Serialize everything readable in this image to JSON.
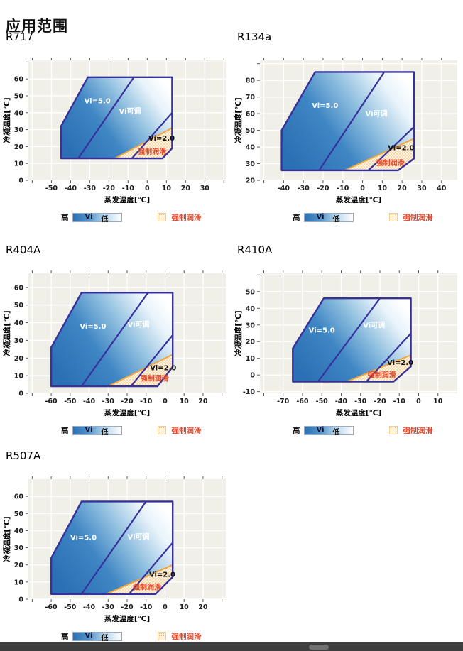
{
  "page_title": "应用范围",
  "axis": {
    "x_label": "蒸发温度[℃]",
    "y_label": "冷凝温度[℃]"
  },
  "legend": {
    "high": "高",
    "vi": "Vi",
    "low": "低",
    "forced": "强制润滑"
  },
  "colors": {
    "border_navy": "#37319b",
    "plot_bg": "#f0efe8",
    "grid": "#ffffff",
    "tick": "#555555",
    "text": "#1a1a1a",
    "orange_line": "#f2a43d",
    "forced_text": "#e0472b",
    "dot_bg": "#fdf5e2",
    "dot_color": "#f0b060",
    "fill_stops": [
      "#2b70b4",
      "#3f86c4",
      "#8ebedf",
      "#e8f3fa",
      "#ffffff"
    ]
  },
  "chart_data": [
    {
      "type": "area",
      "name": "R717",
      "x_ticks": [
        -50,
        -40,
        -30,
        -20,
        -10,
        0,
        10,
        20,
        30
      ],
      "y_ticks": [
        0,
        10,
        20,
        30,
        40,
        50,
        60
      ],
      "x_domain": [
        -62,
        41
      ],
      "y_domain": [
        0,
        71
      ],
      "grid_extra_x": [
        -60,
        40
      ],
      "grid_extra_y": [
        70
      ],
      "envelope": [
        [
          -45,
          13
        ],
        [
          -45,
          32
        ],
        [
          -31,
          61
        ],
        [
          13,
          61
        ],
        [
          13,
          19
        ],
        [
          8,
          13
        ]
      ],
      "vi5_boundary": [
        [
          -36,
          13
        ],
        [
          -7,
          61
        ]
      ],
      "vi2_boundary": [
        [
          -8,
          13
        ],
        [
          13,
          40
        ]
      ],
      "forced_lube_line": [
        [
          -17,
          13
        ],
        [
          13,
          31
        ]
      ],
      "forced_region": [
        [
          -17,
          13
        ],
        [
          13,
          31
        ],
        [
          13,
          19
        ],
        [
          8,
          13
        ]
      ],
      "labels": [
        {
          "text": "Vi=5.0",
          "x": -26,
          "y": 47,
          "style": "white"
        },
        {
          "text": "Vi可调",
          "x": -9,
          "y": 41,
          "style": "white"
        },
        {
          "text": "Vi=2.0",
          "x": 7.5,
          "y": 25,
          "style": "black"
        },
        {
          "text": "强制润滑",
          "x": 2.5,
          "y": 17,
          "style": "red"
        }
      ]
    },
    {
      "type": "area",
      "name": "R134a",
      "x_ticks": [
        -40,
        -30,
        -20,
        -10,
        0,
        10,
        20,
        30,
        40
      ],
      "y_ticks": [
        20,
        30,
        40,
        50,
        60,
        70,
        80
      ],
      "x_domain": [
        -52,
        48
      ],
      "y_domain": [
        20,
        92
      ],
      "grid_extra_x": [
        -50
      ],
      "grid_extra_y": [
        90
      ],
      "envelope": [
        [
          -41,
          26
        ],
        [
          -41,
          50
        ],
        [
          -24,
          85
        ],
        [
          26,
          85
        ],
        [
          26,
          33
        ],
        [
          18,
          26
        ]
      ],
      "vi5_boundary": [
        [
          -22,
          26
        ],
        [
          11,
          85
        ]
      ],
      "vi2_boundary": [
        [
          3,
          26
        ],
        [
          26,
          52
        ]
      ],
      "forced_lube_line": [
        [
          -9,
          26
        ],
        [
          26,
          45
        ]
      ],
      "forced_region": [
        [
          -9,
          26
        ],
        [
          26,
          45
        ],
        [
          26,
          33
        ],
        [
          18,
          26
        ]
      ],
      "labels": [
        {
          "text": "Vi=5.0",
          "x": -19,
          "y": 65,
          "style": "white"
        },
        {
          "text": "Vi可调",
          "x": 7,
          "y": 60,
          "style": "white"
        },
        {
          "text": "Vi=2.0",
          "x": 19.5,
          "y": 39.5,
          "style": "black"
        },
        {
          "text": "强制润滑",
          "x": 14,
          "y": 30.5,
          "style": "red"
        }
      ]
    },
    {
      "type": "area",
      "name": "R404A",
      "x_ticks": [
        -60,
        -50,
        -40,
        -30,
        -20,
        -10,
        0,
        10,
        20
      ],
      "y_ticks": [
        0,
        10,
        20,
        30,
        40,
        50,
        60
      ],
      "x_domain": [
        -72,
        32
      ],
      "y_domain": [
        0,
        68
      ],
      "grid_extra_x": [
        -70,
        30
      ],
      "grid_extra_y": [],
      "envelope": [
        [
          -60,
          4
        ],
        [
          -60,
          26
        ],
        [
          -44,
          57
        ],
        [
          4,
          57
        ],
        [
          4,
          15
        ],
        [
          -4,
          4
        ]
      ],
      "vi5_boundary": [
        [
          -44,
          4
        ],
        [
          -9,
          57
        ]
      ],
      "vi2_boundary": [
        [
          -18,
          4
        ],
        [
          4,
          33
        ]
      ],
      "forced_lube_line": [
        [
          -30,
          4
        ],
        [
          4,
          22
        ]
      ],
      "forced_region": [
        [
          -30,
          4
        ],
        [
          4,
          22
        ],
        [
          4,
          15
        ],
        [
          -4,
          4
        ]
      ],
      "labels": [
        {
          "text": "Vi=5.0",
          "x": -38,
          "y": 38,
          "style": "white"
        },
        {
          "text": "Vi可调",
          "x": -14,
          "y": 39,
          "style": "white"
        },
        {
          "text": "Vi=2.0",
          "x": -1,
          "y": 14.5,
          "style": "black"
        },
        {
          "text": "强制润滑",
          "x": -5.5,
          "y": 8.5,
          "style": "red"
        }
      ]
    },
    {
      "type": "area",
      "name": "R410A",
      "x_ticks": [
        -70,
        -60,
        -50,
        -40,
        -30,
        -20,
        -10,
        0,
        10
      ],
      "y_ticks": [
        -10,
        0,
        10,
        20,
        30,
        40,
        50
      ],
      "x_domain": [
        -82,
        20
      ],
      "y_domain": [
        -11,
        61
      ],
      "grid_extra_x": [
        -80
      ],
      "grid_extra_y": [
        60
      ],
      "envelope": [
        [
          -65,
          -4
        ],
        [
          -65,
          16
        ],
        [
          -49,
          46
        ],
        [
          -4,
          46
        ],
        [
          -4,
          5
        ],
        [
          -13,
          -4
        ]
      ],
      "vi5_boundary": [
        [
          -52,
          -4
        ],
        [
          -20,
          46
        ]
      ],
      "vi2_boundary": [
        [
          -27,
          -4
        ],
        [
          -4,
          25
        ]
      ],
      "forced_lube_line": [
        [
          -37,
          -4
        ],
        [
          -4,
          12
        ]
      ],
      "forced_region": [
        [
          -37,
          -4
        ],
        [
          -4,
          12
        ],
        [
          -4,
          5
        ],
        [
          -13,
          -4
        ]
      ],
      "labels": [
        {
          "text": "Vi=5.0",
          "x": -50,
          "y": 27,
          "style": "white"
        },
        {
          "text": "Vi可调",
          "x": -23,
          "y": 30,
          "style": "white"
        },
        {
          "text": "Vi=2.0",
          "x": -9.5,
          "y": 7.5,
          "style": "black"
        },
        {
          "text": "强制润滑",
          "x": -19,
          "y": 0,
          "style": "red"
        }
      ]
    },
    {
      "type": "area",
      "name": "R507A",
      "x_ticks": [
        -60,
        -50,
        -40,
        -30,
        -20,
        -10,
        0,
        10,
        20
      ],
      "y_ticks": [
        0,
        10,
        20,
        30,
        40,
        50,
        60
      ],
      "x_domain": [
        -72,
        32
      ],
      "y_domain": [
        0,
        70
      ],
      "grid_extra_x": [
        -70,
        30
      ],
      "grid_extra_y": [],
      "envelope": [
        [
          -60,
          3
        ],
        [
          -60,
          24
        ],
        [
          -44,
          57
        ],
        [
          4,
          57
        ],
        [
          4,
          13
        ],
        [
          -5,
          3
        ]
      ],
      "vi5_boundary": [
        [
          -44,
          3
        ],
        [
          -10,
          57
        ]
      ],
      "vi2_boundary": [
        [
          -19,
          3
        ],
        [
          4,
          33
        ]
      ],
      "forced_lube_line": [
        [
          -31,
          3
        ],
        [
          4,
          20
        ]
      ],
      "forced_region": [
        [
          -31,
          3
        ],
        [
          4,
          20
        ],
        [
          4,
          13
        ],
        [
          -5,
          3
        ]
      ],
      "labels": [
        {
          "text": "Vi=5.0",
          "x": -43,
          "y": 36,
          "style": "white"
        },
        {
          "text": "Vi可调",
          "x": -14,
          "y": 36.5,
          "style": "white"
        },
        {
          "text": "Vi=2.0",
          "x": -1.5,
          "y": 14.5,
          "style": "black"
        },
        {
          "text": "强制润滑",
          "x": -9.5,
          "y": 7,
          "style": "red"
        }
      ]
    }
  ]
}
